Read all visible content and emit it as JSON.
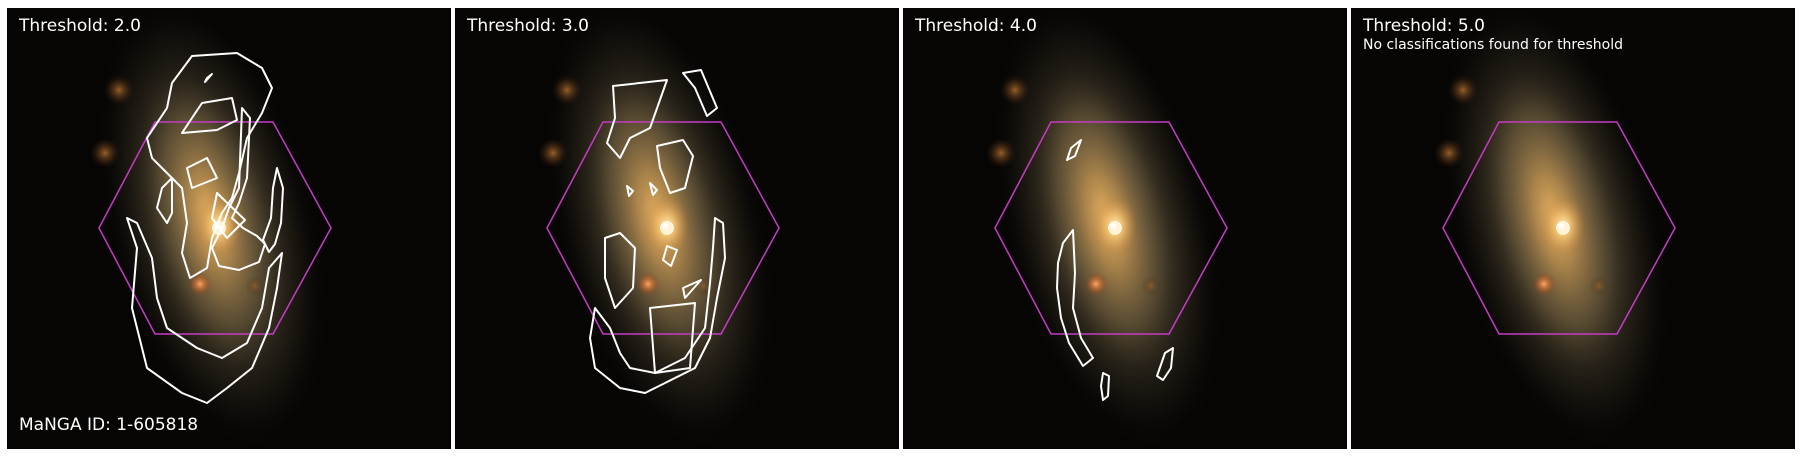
{
  "manga_id_label": "MaNGA ID: 1-605818",
  "panels": [
    {
      "threshold_label": "Threshold: 2.0",
      "note": ""
    },
    {
      "threshold_label": "Threshold: 3.0",
      "note": ""
    },
    {
      "threshold_label": "Threshold: 4.0",
      "note": ""
    },
    {
      "threshold_label": "Threshold: 5.0",
      "note": "No classifications found for threshold"
    }
  ],
  "colors": {
    "hexagon": "#c43cc4",
    "contour": "#ffffff",
    "background": "#060504"
  }
}
